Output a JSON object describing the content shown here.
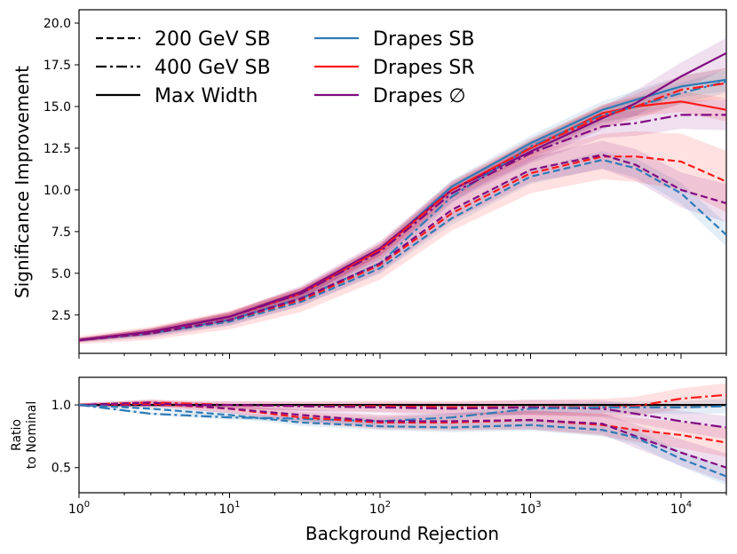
{
  "chart_data": {
    "type": "line",
    "xscale": "log",
    "xlim": [
      1,
      20000
    ],
    "xlabel": "Background Rejection",
    "x_tick_labels": [
      "10^0",
      "10^1",
      "10^2",
      "10^3",
      "10^4"
    ],
    "x_ticks": [
      1,
      10,
      100,
      1000,
      10000
    ],
    "colors": {
      "blue": "#2f7bb6",
      "red": "#ff1a1a",
      "purple": "#800a80",
      "black": "#000000"
    },
    "legend": [
      {
        "label": "200 GeV SB",
        "style": "dashed",
        "color": "#000000"
      },
      {
        "label": "400 GeV SB",
        "style": "dashdot",
        "color": "#000000"
      },
      {
        "label": "Max Width",
        "style": "solid",
        "color": "#000000"
      },
      {
        "label": "Drapes SB",
        "style": "solid",
        "color": "#2f7bb6"
      },
      {
        "label": "Drapes SR",
        "style": "solid",
        "color": "#ff1a1a"
      },
      {
        "label": "Drapes ∅",
        "style": "solid",
        "color": "#800a80"
      }
    ],
    "top_panel": {
      "ylabel": "Significance Improvement",
      "ylim": [
        0.2,
        20.8
      ],
      "y_ticks": [
        2.5,
        5.0,
        7.5,
        10.0,
        12.5,
        15.0,
        17.5,
        20.0
      ],
      "y_tick_labels": [
        "2.5",
        "5.0",
        "7.5",
        "10.0",
        "12.5",
        "15.0",
        "17.5",
        "20.0"
      ],
      "x_points": [
        1,
        3,
        10,
        30,
        100,
        300,
        1000,
        3000,
        5000,
        10000,
        20000
      ],
      "series": [
        {
          "name": "Drapes SB (Max Width)",
          "color": "#2f7bb6",
          "style": "solid",
          "band": 0.6,
          "values": [
            1.0,
            1.5,
            2.4,
            3.8,
            6.4,
            10.2,
            12.8,
            14.8,
            15.4,
            16.2,
            16.6
          ]
        },
        {
          "name": "Drapes SR (Max Width)",
          "color": "#ff1a1a",
          "style": "solid",
          "band": 0.6,
          "values": [
            1.0,
            1.5,
            2.4,
            3.8,
            6.4,
            10.0,
            12.5,
            14.6,
            15.0,
            15.3,
            14.8
          ]
        },
        {
          "name": "Drapes ∅ (Max Width)",
          "color": "#800a80",
          "style": "solid",
          "band": 0.8,
          "values": [
            1.0,
            1.5,
            2.4,
            3.9,
            6.5,
            10.0,
            12.3,
            14.3,
            15.2,
            16.8,
            18.2
          ]
        },
        {
          "name": "Drapes SB (400 GeV SB)",
          "color": "#2f7bb6",
          "style": "dashdot",
          "band": 0.6,
          "values": [
            1.0,
            1.4,
            2.2,
            3.5,
            5.6,
            9.6,
            12.6,
            14.5,
            15.0,
            15.8,
            16.5
          ]
        },
        {
          "name": "Drapes SR (400 GeV SB)",
          "color": "#ff1a1a",
          "style": "dashdot",
          "band": 0.8,
          "values": [
            1.0,
            1.5,
            2.4,
            3.8,
            6.4,
            10.0,
            12.5,
            14.4,
            15.0,
            16.0,
            16.4
          ]
        },
        {
          "name": "Drapes ∅ (400 GeV SB)",
          "color": "#800a80",
          "style": "dashdot",
          "band": 0.8,
          "values": [
            1.0,
            1.5,
            2.4,
            3.8,
            6.3,
            9.8,
            12.2,
            13.8,
            14.0,
            14.5,
            14.5
          ]
        },
        {
          "name": "Drapes SB (200 GeV SB)",
          "color": "#2f7bb6",
          "style": "dashed",
          "band": 0.6,
          "values": [
            1.0,
            1.4,
            2.1,
            3.3,
            5.3,
            8.3,
            10.8,
            11.8,
            11.3,
            9.8,
            7.3
          ]
        },
        {
          "name": "Drapes SR (200 GeV SB)",
          "color": "#ff1a1a",
          "style": "dashed",
          "band": 1.6,
          "values": [
            1.0,
            1.4,
            2.2,
            3.4,
            5.5,
            8.6,
            11.0,
            12.0,
            12.0,
            11.7,
            10.5
          ]
        },
        {
          "name": "Drapes ∅ (200 GeV SB)",
          "color": "#800a80",
          "style": "dashed",
          "band": 1.0,
          "values": [
            1.0,
            1.4,
            2.2,
            3.5,
            5.6,
            8.8,
            11.2,
            12.1,
            11.5,
            10.0,
            9.2
          ]
        }
      ]
    },
    "bottom_panel": {
      "ylabel_line1": "Ratio",
      "ylabel_line2": "to Nominal",
      "ylim": [
        0.3,
        1.22
      ],
      "y_ticks": [
        0.5,
        1.0
      ],
      "y_tick_labels": [
        "0.5",
        "1.0"
      ],
      "x_points": [
        1,
        3,
        10,
        30,
        100,
        300,
        1000,
        3000,
        5000,
        10000,
        20000
      ],
      "series": [
        {
          "name": "Max Width reference",
          "color": "#000000",
          "style": "solid",
          "band": 0,
          "values": [
            1.0,
            1.0,
            1.0,
            1.0,
            1.0,
            1.0,
            1.0,
            1.0,
            1.0,
            1.0,
            1.0
          ]
        },
        {
          "name": "Ratio SR 400",
          "color": "#ff1a1a",
          "style": "dashdot",
          "band": 0.08,
          "values": [
            1.0,
            1.02,
            1.0,
            0.99,
            0.99,
            0.98,
            0.98,
            0.98,
            0.99,
            1.05,
            1.08
          ]
        },
        {
          "name": "Ratio ∅ 400",
          "color": "#800a80",
          "style": "dashdot",
          "band": 0.08,
          "values": [
            1.0,
            1.0,
            1.0,
            0.99,
            0.98,
            0.97,
            0.98,
            0.97,
            0.93,
            0.87,
            0.82
          ]
        },
        {
          "name": "Ratio SB 400",
          "color": "#2f7bb6",
          "style": "dashdot",
          "band": 0.05,
          "values": [
            1.0,
            0.93,
            0.9,
            0.89,
            0.87,
            0.9,
            0.97,
            0.98,
            0.98,
            0.98,
            0.99
          ]
        },
        {
          "name": "Ratio SR 200",
          "color": "#ff1a1a",
          "style": "dashed",
          "band": 0.1,
          "values": [
            1.0,
            1.01,
            0.97,
            0.9,
            0.86,
            0.86,
            0.88,
            0.84,
            0.8,
            0.76,
            0.7
          ]
        },
        {
          "name": "Ratio ∅ 200",
          "color": "#800a80",
          "style": "dashed",
          "band": 0.1,
          "values": [
            1.0,
            1.02,
            0.97,
            0.92,
            0.87,
            0.87,
            0.88,
            0.85,
            0.75,
            0.62,
            0.5
          ]
        },
        {
          "name": "Ratio SB 200",
          "color": "#2f7bb6",
          "style": "dashed",
          "band": 0.06,
          "values": [
            1.0,
            0.97,
            0.92,
            0.86,
            0.83,
            0.82,
            0.84,
            0.8,
            0.74,
            0.57,
            0.43
          ]
        }
      ]
    }
  }
}
